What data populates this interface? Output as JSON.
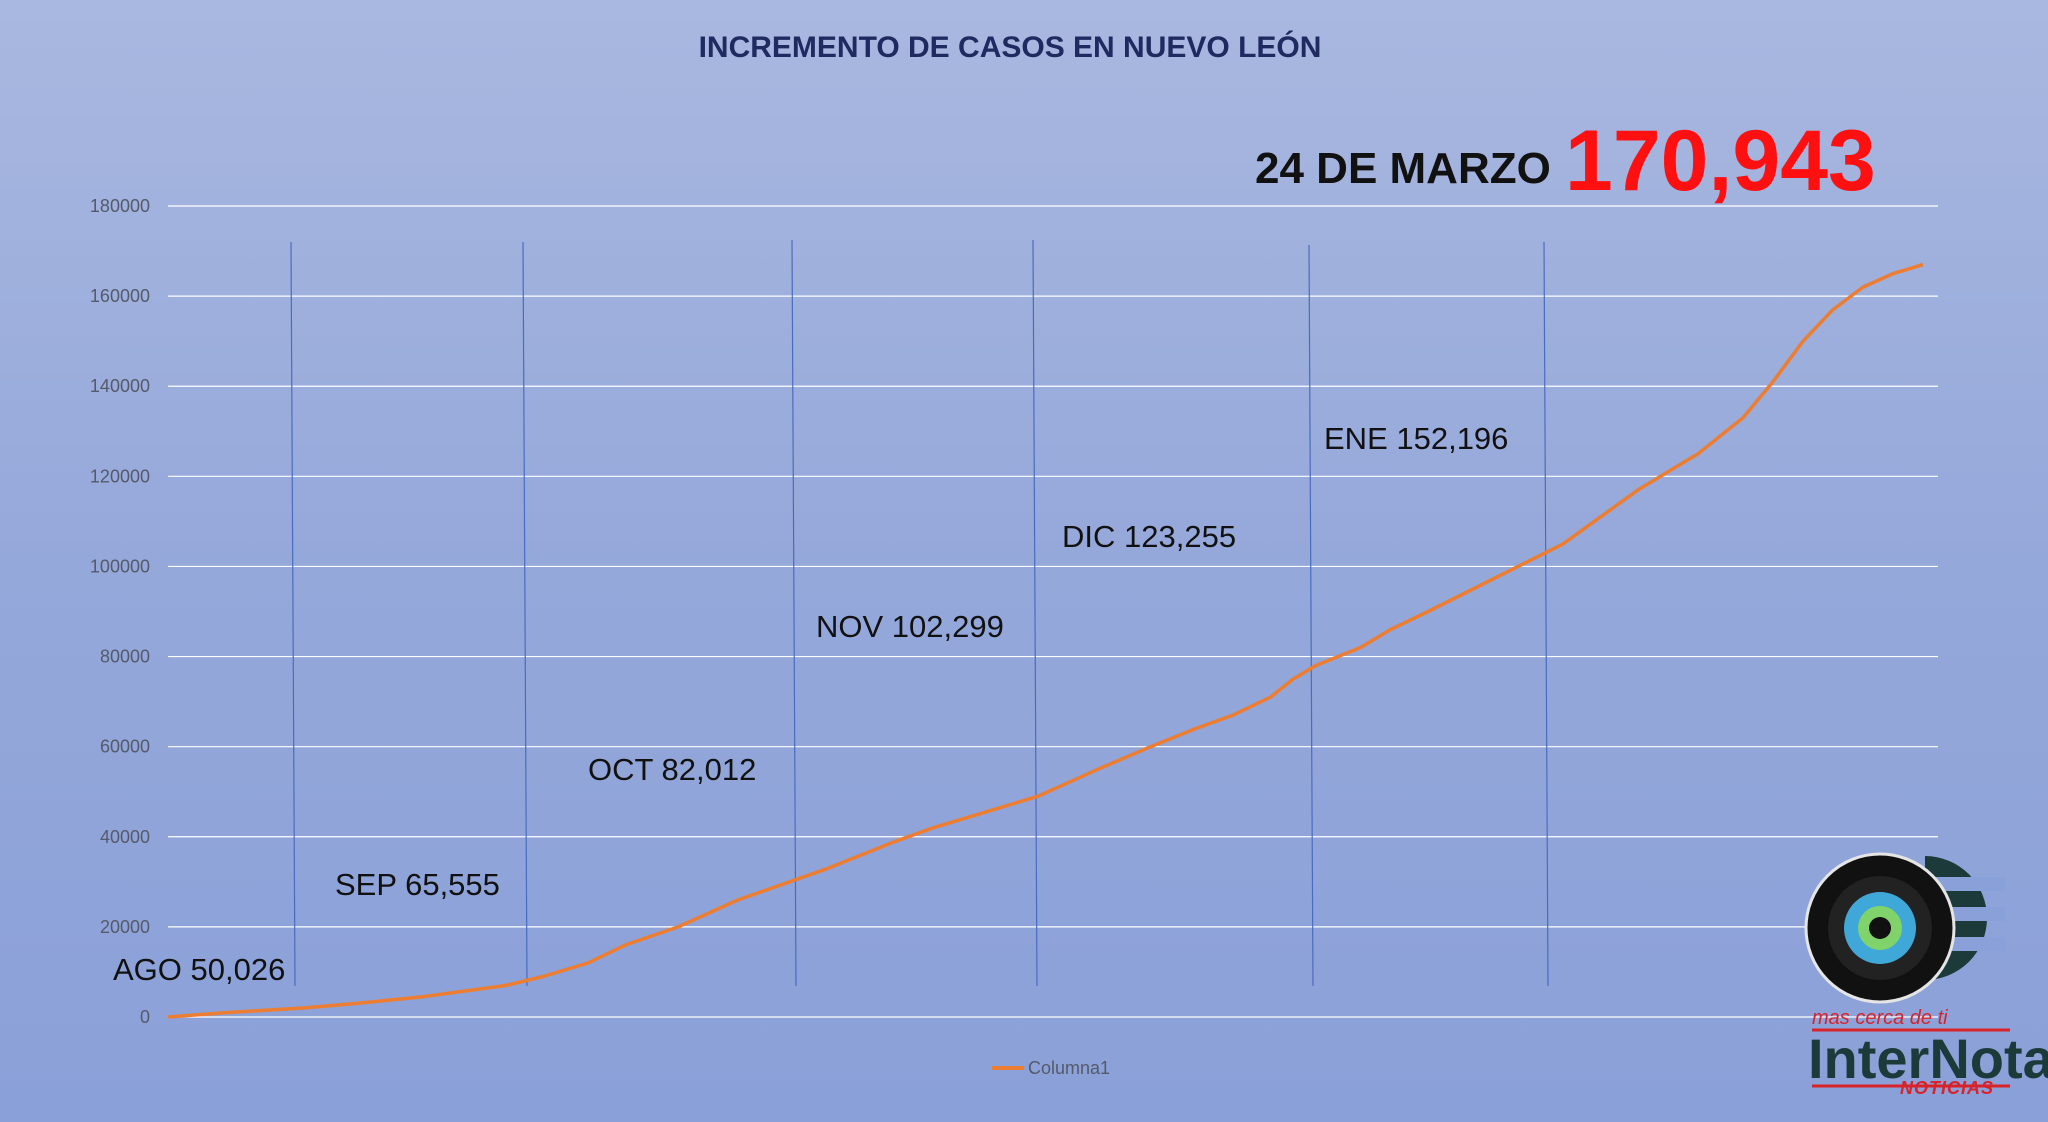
{
  "chart_data": {
    "type": "line",
    "title": "INCREMENTO DE CASOS EN NUEVO LEÓN",
    "xlabel": "",
    "ylabel": "",
    "ylim": [
      0,
      180000
    ],
    "yticks": [
      "0",
      "20000",
      "40000",
      "60000",
      "80000",
      "100000",
      "120000",
      "140000",
      "160000",
      "180000"
    ],
    "grid": true,
    "legend_position": "bottom",
    "series": [
      {
        "name": "Columna1",
        "color": "#ed7d31",
        "x": [
          0,
          8,
          18,
          25,
          34,
          45,
          50,
          56,
          61,
          68,
          76,
          88,
          97,
          102,
          108,
          116,
          124,
          131,
          137,
          142,
          147,
          150,
          153,
          159,
          163,
          168,
          174,
          180,
          186,
          191,
          196,
          200,
          204,
          210,
          214,
          218,
          222,
          226,
          230,
          234
        ],
        "y": [
          0,
          1000,
          2000,
          3000,
          4500,
          7000,
          9000,
          12000,
          16000,
          20000,
          26000,
          33000,
          39000,
          42000,
          45000,
          49000,
          55000,
          60000,
          64000,
          67000,
          71000,
          75000,
          78000,
          82000,
          86000,
          90000,
          95000,
          100000,
          105000,
          111000,
          117000,
          121000,
          125000,
          133000,
          141000,
          150000,
          157000,
          162000,
          165000,
          167000
        ]
      }
    ]
  },
  "annotations": {
    "months": [
      {
        "text": "AGO 50,026"
      },
      {
        "text": "SEP 65,555"
      },
      {
        "text": "OCT 82,012"
      },
      {
        "text": "NOV 102,299"
      },
      {
        "text": "DIC 123,255"
      },
      {
        "text": "ENE 152,196"
      }
    ],
    "highlight_date": "24 DE MARZO",
    "highlight_value": "170,943"
  },
  "logo": {
    "tagline": "mas cerca de ti",
    "name": "InterNota",
    "sub": "NOTICIAS"
  },
  "colors": {
    "line": "#ed7d31",
    "grid": "#ffffff",
    "month_divider": "#4a6cc0",
    "highlight": "#ff1010",
    "title": "#1f2a60"
  }
}
